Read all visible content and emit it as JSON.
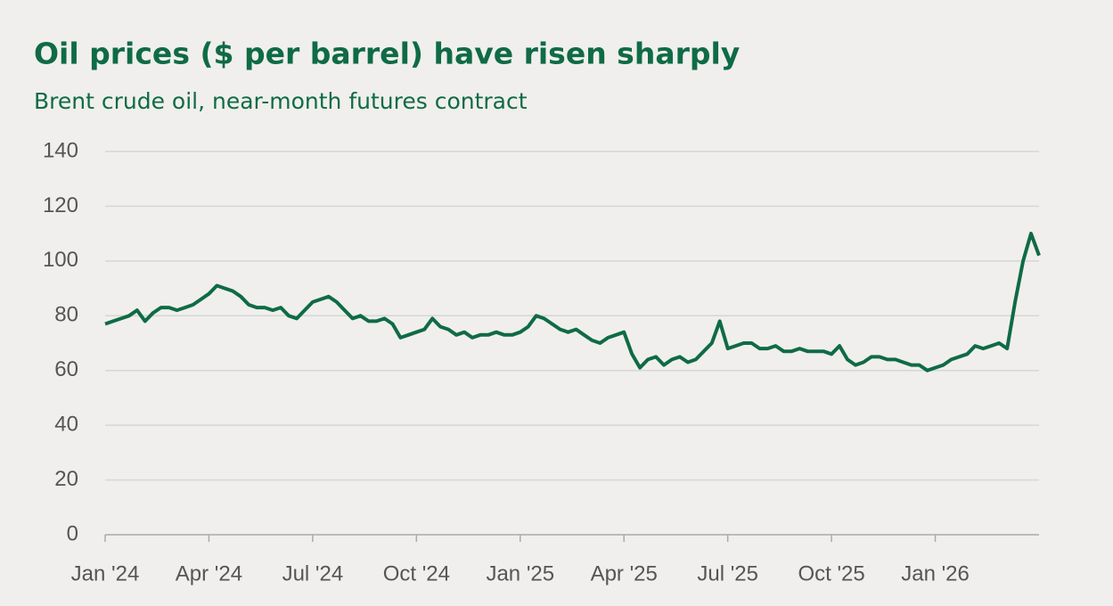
{
  "chart_data": {
    "type": "line",
    "title": "Oil prices ($ per barrel) have risen sharply",
    "subtitle": "Brent crude oil, near-month futures contract",
    "categories": [
      "Jan '24",
      null,
      null,
      null,
      null,
      null,
      null,
      null,
      null,
      null,
      null,
      null,
      null,
      "Apr '24",
      null,
      null,
      null,
      null,
      null,
      null,
      null,
      null,
      null,
      null,
      null,
      null,
      "Jul '24",
      null,
      null,
      null,
      null,
      null,
      null,
      null,
      null,
      null,
      null,
      null,
      null,
      "Oct '24",
      null,
      null,
      null,
      null,
      null,
      null,
      null,
      null,
      null,
      null,
      null,
      null,
      "Jan '25",
      null,
      null,
      null,
      null,
      null,
      null,
      null,
      null,
      null,
      null,
      null,
      null,
      "Apr '25",
      null,
      null,
      null,
      null,
      null,
      null,
      null,
      null,
      null,
      null,
      null,
      null,
      "Jul '25",
      null,
      null,
      null,
      null,
      null,
      null,
      null,
      null,
      null,
      null,
      null,
      null,
      "Oct '25",
      null,
      null,
      null,
      null,
      null,
      null,
      null,
      null,
      null,
      null,
      null,
      null,
      "Jan '26",
      null,
      null,
      null,
      null,
      null,
      null,
      null,
      null,
      null,
      null,
      null,
      null,
      null
    ],
    "series": [
      {
        "name": "Brent crude oil",
        "color": "#0f6b45",
        "values": [
          77,
          78,
          79,
          80,
          82,
          78,
          81,
          83,
          83,
          82,
          83,
          84,
          86,
          88,
          91,
          90,
          89,
          87,
          84,
          83,
          83,
          82,
          83,
          80,
          79,
          82,
          85,
          86,
          87,
          85,
          82,
          79,
          80,
          78,
          78,
          79,
          77,
          72,
          73,
          74,
          75,
          79,
          76,
          75,
          73,
          74,
          72,
          73,
          73,
          74,
          73,
          73,
          74,
          76,
          80,
          79,
          77,
          75,
          74,
          75,
          73,
          71,
          70,
          72,
          73,
          74,
          66,
          61,
          64,
          65,
          62,
          64,
          65,
          63,
          64,
          67,
          70,
          78,
          68,
          69,
          70,
          70,
          68,
          68,
          69,
          67,
          67,
          68,
          67,
          67,
          67,
          66,
          69,
          64,
          62,
          63,
          65,
          65,
          64,
          64,
          63,
          62,
          62,
          60,
          61,
          62,
          64,
          65,
          66,
          69,
          68,
          69,
          70,
          68,
          85,
          100,
          110,
          102
        ]
      }
    ],
    "ylim": [
      0,
      140
    ],
    "yticks": [
      0,
      20,
      40,
      60,
      80,
      100,
      120,
      140
    ],
    "grid": true
  }
}
